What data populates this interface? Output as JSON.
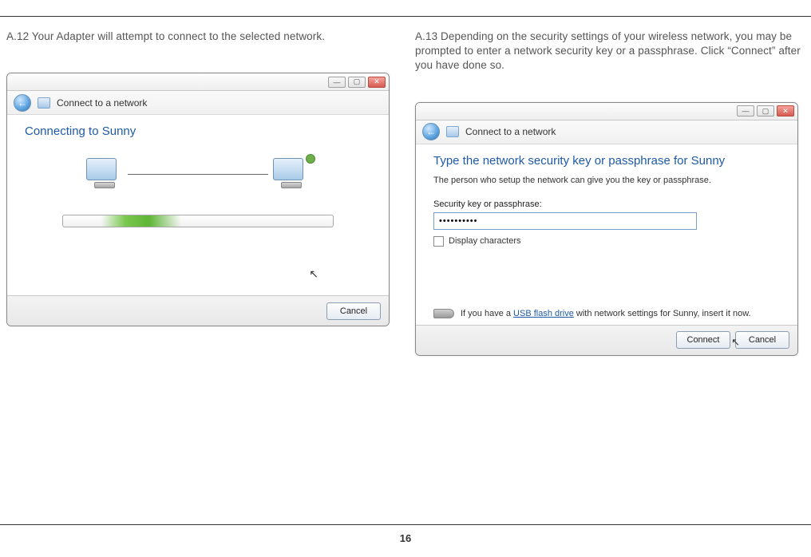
{
  "page_number": "16",
  "left": {
    "caption": "A.12 Your Adapter will attempt to connect to the selected network.",
    "dialog": {
      "nav_title": "Connect to a network",
      "heading": "Connecting to Sunny",
      "cancel": "Cancel"
    }
  },
  "right": {
    "caption": "A.13 Depending on the security settings of your wireless network, you may be prompted to enter a network security key or a passphrase. Click “Connect” after you have done so.",
    "dialog": {
      "nav_title": "Connect to a network",
      "heading": "Type the network security key or passphrase for Sunny",
      "sub": "The person who setup the network can give you the key or passphrase.",
      "label": "Security key or passphrase:",
      "value": "••••••••••",
      "display_chars": "Display characters",
      "usb_pre": "If you have a ",
      "usb_link": "USB flash drive",
      "usb_post": " with network settings for Sunny, insert it now.",
      "connect": "Connect",
      "cancel": "Cancel"
    }
  }
}
